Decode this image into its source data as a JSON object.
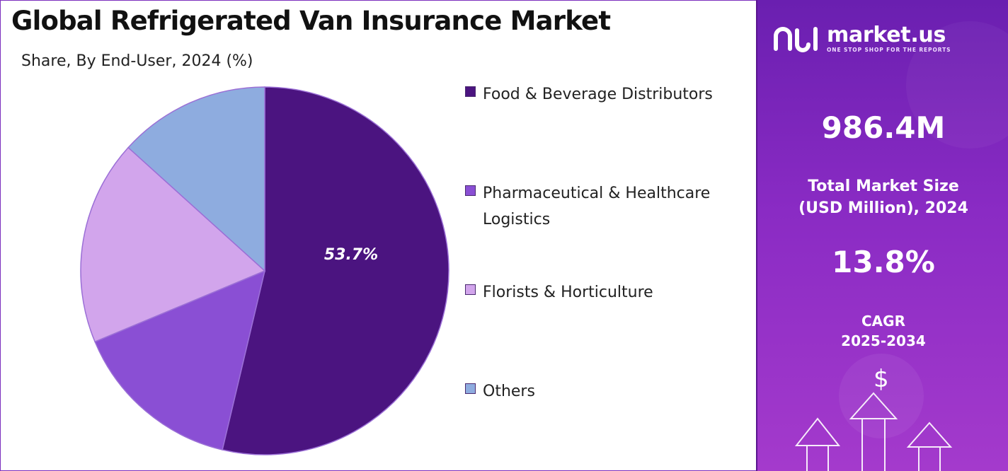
{
  "header": {
    "title": "Global Refrigerated Van Insurance Market",
    "subtitle": "Share, By End-User, 2024 (%)"
  },
  "chart_data": {
    "type": "pie",
    "title": "Global Refrigerated Van Insurance Market",
    "subtitle": "Share, By End-User, 2024 (%)",
    "start_angle_deg": 0,
    "direction": "clockwise",
    "slices": [
      {
        "label": "Food & Beverage Distributors",
        "value": 53.7,
        "color": "#4b1480",
        "data_label": "53.7%"
      },
      {
        "label": "Pharmaceutical & Healthcare Logistics",
        "value": 15.0,
        "color": "#8a4fd4",
        "data_label": ""
      },
      {
        "label": "Florists & Horticulture",
        "value": 18.0,
        "color": "#d2a5ec",
        "data_label": ""
      },
      {
        "label": "Others",
        "value": 13.3,
        "color": "#8eacdf",
        "data_label": ""
      }
    ],
    "legend_position": "right"
  },
  "legend": {
    "items": [
      {
        "label": "Food & Beverage Distributors",
        "color": "#4b1480"
      },
      {
        "label": "Pharmaceutical & Healthcare Logistics",
        "color": "#8a4fd4"
      },
      {
        "label": "Florists & Horticulture",
        "color": "#d2a5ec"
      },
      {
        "label": "Others",
        "color": "#8eacdf"
      }
    ]
  },
  "panel": {
    "logo_name": "market.us",
    "logo_tagline": "ONE STOP SHOP FOR THE REPORTS",
    "market_size_value": "986.4M",
    "market_size_label_line1": "Total Market Size",
    "market_size_label_line2": "(USD Million), 2024",
    "cagr_value": "13.8%",
    "cagr_label_line1": "CAGR",
    "cagr_label_line2": "2025-2034",
    "dollar_symbol": "$",
    "accent_color": "#8a2bc4"
  }
}
